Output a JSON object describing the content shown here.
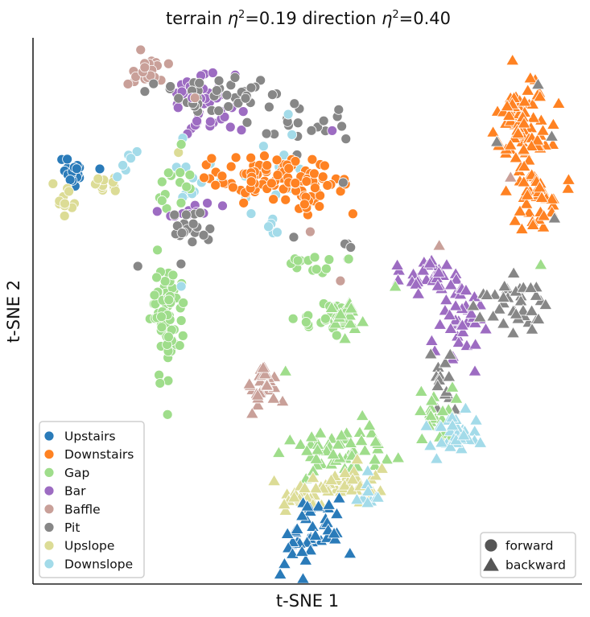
{
  "chart_data": {
    "type": "scatter",
    "title_parts": {
      "terrain": "terrain ",
      "eta": "η",
      "sq": "2",
      "terrain_val": "=0.19  direction ",
      "dir_val": "=0.40"
    },
    "xlabel": "t-SNE 1",
    "ylabel": "t-SNE 2",
    "xlim": [
      0,
      100
    ],
    "ylim": [
      0,
      100
    ],
    "grid": false,
    "legend_terrain": {
      "placement": "bottom-left",
      "entries": [
        {
          "name": "Upstairs",
          "color": "#2a7bb9"
        },
        {
          "name": "Downstairs",
          "color": "#ff8222"
        },
        {
          "name": "Gap",
          "color": "#9fdd8b"
        },
        {
          "name": "Bar",
          "color": "#9d6cc2"
        },
        {
          "name": "Baffle",
          "color": "#c9a099"
        },
        {
          "name": "Pit",
          "color": "#878787"
        },
        {
          "name": "Upslope",
          "color": "#dcdc96"
        },
        {
          "name": "Downslope",
          "color": "#a3dbe9"
        }
      ]
    },
    "legend_direction": {
      "placement": "bottom-right",
      "entries": [
        {
          "name": "forward",
          "marker": "circle",
          "color": "#555555"
        },
        {
          "name": "backward",
          "marker": "triangle",
          "color": "#555555"
        }
      ]
    },
    "clusters": [
      {
        "terrain": "Upstairs",
        "direction": "forward",
        "cx": 7.5,
        "cy": 75.5,
        "sx": 1.2,
        "sy": 1.3,
        "n": 25
      },
      {
        "terrain": "Upslope",
        "direction": "forward",
        "cx": 5.5,
        "cy": 69.5,
        "sx": 0.9,
        "sy": 1.3,
        "n": 12
      },
      {
        "terrain": "Upslope",
        "direction": "forward",
        "cx": 13.5,
        "cy": 73.8,
        "sx": 2.0,
        "sy": 1.2,
        "n": 14
      },
      {
        "terrain": "Downslope",
        "direction": "forward",
        "cx": 16.5,
        "cy": 76.5,
        "sx": 1.4,
        "sy": 1.2,
        "n": 6
      },
      {
        "terrain": "Baffle",
        "direction": "forward",
        "cx": 20.5,
        "cy": 93.5,
        "sx": 1.7,
        "sy": 1.3,
        "n": 30
      },
      {
        "terrain": "Bar",
        "direction": "forward",
        "cx": 29.5,
        "cy": 89.5,
        "sx": 3.8,
        "sy": 2.0,
        "n": 34
      },
      {
        "terrain": "Bar",
        "direction": "forward",
        "cx": 32.5,
        "cy": 84.5,
        "sx": 3.0,
        "sy": 1.6,
        "n": 16
      },
      {
        "terrain": "Pit",
        "direction": "forward",
        "cx": 35.0,
        "cy": 89.5,
        "sx": 6.5,
        "sy": 1.8,
        "n": 44
      },
      {
        "terrain": "Pit",
        "direction": "forward",
        "cx": 50.5,
        "cy": 84.0,
        "sx": 3.5,
        "sy": 2.2,
        "n": 16
      },
      {
        "terrain": "Downslope",
        "direction": "forward",
        "cx": 30.0,
        "cy": 75.5,
        "sx": 5.0,
        "sy": 2.5,
        "n": 14
      },
      {
        "terrain": "Downslope",
        "direction": "forward",
        "cx": 46.5,
        "cy": 75.5,
        "sx": 2.5,
        "sy": 2.2,
        "n": 12
      },
      {
        "terrain": "Gap",
        "direction": "forward",
        "cx": 26.0,
        "cy": 73.5,
        "sx": 2.0,
        "sy": 2.3,
        "n": 14
      },
      {
        "terrain": "Bar",
        "direction": "forward",
        "cx": 28.5,
        "cy": 67.8,
        "sx": 3.3,
        "sy": 1.2,
        "n": 12
      },
      {
        "terrain": "Pit",
        "direction": "forward",
        "cx": 28.5,
        "cy": 64.5,
        "sx": 2.2,
        "sy": 2.6,
        "n": 20
      },
      {
        "terrain": "Downstairs",
        "direction": "forward",
        "cx": 41.0,
        "cy": 74.5,
        "sx": 4.5,
        "sy": 1.8,
        "n": 62
      },
      {
        "terrain": "Downstairs",
        "direction": "forward",
        "cx": 50.5,
        "cy": 72.5,
        "sx": 4.5,
        "sy": 2.6,
        "n": 52
      },
      {
        "terrain": "Downslope",
        "direction": "forward",
        "cx": 43.5,
        "cy": 65.0,
        "sx": 1.4,
        "sy": 1.0,
        "n": 5
      },
      {
        "terrain": "Pit",
        "direction": "forward",
        "cx": 57.5,
        "cy": 61.5,
        "sx": 0.6,
        "sy": 0.5,
        "n": 4
      },
      {
        "terrain": "Gap",
        "direction": "forward",
        "cx": 50.0,
        "cy": 58.5,
        "sx": 3.0,
        "sy": 1.6,
        "n": 12
      },
      {
        "terrain": "Gap",
        "direction": "forward",
        "cx": 24.5,
        "cy": 48.5,
        "sx": 1.4,
        "sy": 5.5,
        "n": 75
      },
      {
        "terrain": "Gap",
        "direction": "forward",
        "cx": 53.5,
        "cy": 48.5,
        "sx": 2.5,
        "sy": 1.8,
        "n": 26
      },
      {
        "terrain": "Gap",
        "direction": "backward",
        "cx": 56.5,
        "cy": 49.5,
        "sx": 1.6,
        "sy": 1.9,
        "n": 20
      },
      {
        "terrain": "Baffle",
        "direction": "backward",
        "cx": 42.0,
        "cy": 37.0,
        "sx": 1.6,
        "sy": 2.2,
        "n": 30
      },
      {
        "terrain": "Downstairs",
        "direction": "backward",
        "cx": 89.5,
        "cy": 84.0,
        "sx": 2.3,
        "sy": 4.2,
        "n": 75
      },
      {
        "terrain": "Downstairs",
        "direction": "backward",
        "cx": 91.5,
        "cy": 72.5,
        "sx": 2.3,
        "sy": 3.2,
        "n": 42
      },
      {
        "terrain": "Bar",
        "direction": "backward",
        "cx": 71.0,
        "cy": 57.0,
        "sx": 3.0,
        "sy": 1.8,
        "n": 28
      },
      {
        "terrain": "Bar",
        "direction": "backward",
        "cx": 77.5,
        "cy": 48.5,
        "sx": 2.0,
        "sy": 3.6,
        "n": 40
      },
      {
        "terrain": "Pit",
        "direction": "backward",
        "cx": 86.5,
        "cy": 51.0,
        "sx": 3.2,
        "sy": 3.0,
        "n": 36
      },
      {
        "terrain": "Pit",
        "direction": "backward",
        "cx": 75.0,
        "cy": 39.0,
        "sx": 1.2,
        "sy": 2.6,
        "n": 14
      },
      {
        "terrain": "Gap",
        "direction": "backward",
        "cx": 73.5,
        "cy": 31.0,
        "sx": 1.6,
        "sy": 2.8,
        "n": 22
      },
      {
        "terrain": "Downslope",
        "direction": "backward",
        "cx": 77.5,
        "cy": 27.0,
        "sx": 2.6,
        "sy": 2.0,
        "n": 34
      },
      {
        "terrain": "Gap",
        "direction": "backward",
        "cx": 56.0,
        "cy": 24.5,
        "sx": 5.0,
        "sy": 2.2,
        "n": 58
      },
      {
        "terrain": "Upslope",
        "direction": "backward",
        "cx": 56.5,
        "cy": 18.5,
        "sx": 4.0,
        "sy": 1.6,
        "n": 34
      },
      {
        "terrain": "Upslope",
        "direction": "backward",
        "cx": 48.5,
        "cy": 15.5,
        "sx": 2.3,
        "sy": 1.4,
        "n": 22
      },
      {
        "terrain": "Downslope",
        "direction": "backward",
        "cx": 61.5,
        "cy": 16.5,
        "sx": 0.8,
        "sy": 1.4,
        "n": 8
      },
      {
        "terrain": "Upstairs",
        "direction": "backward",
        "cx": 50.5,
        "cy": 9.0,
        "sx": 3.4,
        "sy": 3.2,
        "n": 45
      }
    ],
    "points": [
      {
        "terrain": "Pit",
        "direction": "forward",
        "x": 39.0,
        "y": 84.5
      },
      {
        "terrain": "Pit",
        "direction": "forward",
        "x": 57.0,
        "y": 81.5
      },
      {
        "terrain": "Pit",
        "direction": "forward",
        "x": 56.5,
        "y": 73.5
      },
      {
        "terrain": "Bar",
        "direction": "forward",
        "x": 29.0,
        "y": 89.0
      },
      {
        "terrain": "Bar",
        "direction": "forward",
        "x": 54.5,
        "y": 83.0
      },
      {
        "terrain": "Upslope",
        "direction": "forward",
        "x": 26.5,
        "y": 79.0
      },
      {
        "terrain": "Gap",
        "direction": "forward",
        "x": 27.0,
        "y": 80.5
      },
      {
        "terrain": "Downslope",
        "direction": "forward",
        "x": 46.5,
        "y": 86.0
      },
      {
        "terrain": "Downslope",
        "direction": "forward",
        "x": 27.0,
        "y": 54.5
      },
      {
        "terrain": "Baffle",
        "direction": "forward",
        "x": 29.5,
        "y": 89.0
      },
      {
        "terrain": "Baffle",
        "direction": "forward",
        "x": 50.5,
        "y": 64.5
      },
      {
        "terrain": "Baffle",
        "direction": "forward",
        "x": 56.0,
        "y": 55.5
      },
      {
        "terrain": "Pit",
        "direction": "forward",
        "x": 47.5,
        "y": 63.5
      },
      {
        "terrain": "Gap",
        "direction": "forward",
        "x": 57.5,
        "y": 59.5
      },
      {
        "terrain": "Baffle",
        "direction": "backward",
        "x": 74.0,
        "y": 62.0
      },
      {
        "terrain": "Baffle",
        "direction": "backward",
        "x": 87.0,
        "y": 74.5
      },
      {
        "terrain": "Pit",
        "direction": "backward",
        "x": 92.0,
        "y": 91.5
      },
      {
        "terrain": "Pit",
        "direction": "backward",
        "x": 94.5,
        "y": 82.0
      },
      {
        "terrain": "Pit",
        "direction": "backward",
        "x": 84.5,
        "y": 81.0
      },
      {
        "terrain": "Pit",
        "direction": "backward",
        "x": 95.0,
        "y": 67.0
      },
      {
        "terrain": "Gap",
        "direction": "backward",
        "x": 66.0,
        "y": 54.5
      },
      {
        "terrain": "Gap",
        "direction": "backward",
        "x": 92.5,
        "y": 58.5
      },
      {
        "terrain": "Bar",
        "direction": "backward",
        "x": 80.5,
        "y": 39.0
      },
      {
        "terrain": "Gap",
        "direction": "backward",
        "x": 46.0,
        "y": 39.0
      },
      {
        "terrain": "Downslope",
        "direction": "backward",
        "x": 59.0,
        "y": 15.5
      }
    ]
  }
}
